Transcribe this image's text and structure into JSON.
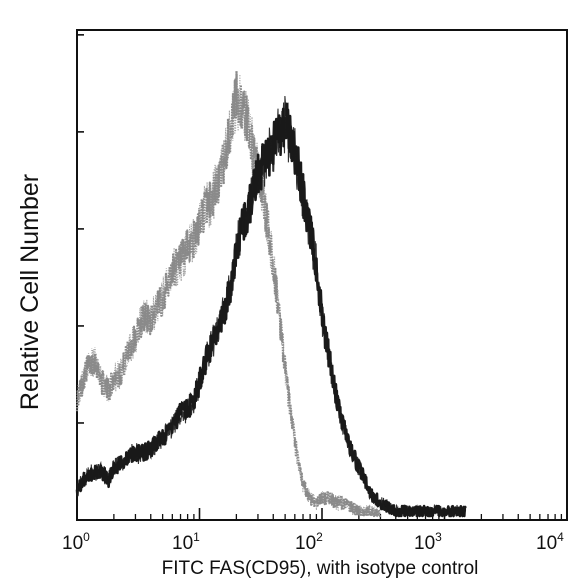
{
  "chart_data": {
    "type": "line",
    "title": "",
    "xlabel": "FITC FAS(CD95),  with isotype control",
    "ylabel": "Relative Cell Number",
    "x_scale": "log",
    "xlim": [
      1,
      10000
    ],
    "ylim": [
      0,
      100
    ],
    "x_tick_labels": [
      {
        "base": "10",
        "exp": "0"
      },
      {
        "base": "10",
        "exp": "1"
      },
      {
        "base": "10",
        "exp": "2"
      },
      {
        "base": "10",
        "exp": "3"
      },
      {
        "base": "10",
        "exp": "4"
      }
    ],
    "grid": false,
    "series": [
      {
        "role": "isotype control",
        "color": "#8a8a8a",
        "x": [
          1.0,
          1.2,
          1.4,
          1.6,
          1.8,
          2.0,
          2.3,
          2.6,
          3.0,
          3.5,
          4.0,
          4.6,
          5.2,
          6.0,
          7.0,
          8.0,
          9.0,
          10.0,
          11.0,
          12.5,
          14.0,
          16.0,
          18.0,
          20.0,
          22.0,
          25.0,
          28.0,
          32.0,
          36.0,
          40.0,
          45.0,
          50.0,
          56.0,
          63.0,
          70.0,
          80.0,
          90.0,
          100.0,
          115.0,
          130.0,
          150.0,
          170.0,
          200.0,
          250.0,
          300.0
        ],
        "y": [
          26,
          33,
          35,
          30,
          28,
          31,
          32,
          37,
          40,
          45,
          44,
          47,
          50,
          55,
          57,
          60,
          62,
          65,
          69,
          71,
          74,
          80,
          87,
          94,
          92,
          88,
          80,
          74,
          65,
          56,
          45,
          33,
          22,
          13,
          7,
          4,
          3,
          4,
          4,
          3,
          3,
          2,
          1,
          1,
          0
        ]
      },
      {
        "role": "FITC FAS(CD95)",
        "color": "#1a1a1a",
        "x": [
          1.0,
          1.2,
          1.4,
          1.6,
          1.8,
          2.0,
          2.4,
          2.8,
          3.3,
          4.0,
          4.6,
          5.2,
          6.0,
          7.0,
          8.0,
          9.0,
          10.0,
          11.0,
          12.5,
          14.0,
          16.0,
          18.0,
          20.0,
          22.0,
          25.0,
          28.0,
          32.0,
          36.0,
          40.0,
          45.0,
          50.0,
          56.0,
          63.0,
          70.0,
          80.0,
          90.0,
          100.0,
          115.0,
          130.0,
          150.0,
          170.0,
          200.0,
          250.0,
          300.0,
          400.0,
          500.0,
          700.0,
          1000.0,
          1500.0
        ],
        "y": [
          6,
          9,
          10,
          10,
          8,
          11,
          12,
          14,
          14,
          15,
          17,
          18,
          20,
          23,
          24,
          26,
          30,
          34,
          38,
          42,
          46,
          52,
          60,
          65,
          68,
          74,
          78,
          81,
          83,
          86,
          88,
          84,
          79,
          72,
          64,
          56,
          45,
          35,
          27,
          20,
          15,
          11,
          5,
          3,
          1,
          1,
          1,
          1,
          1
        ]
      }
    ]
  }
}
